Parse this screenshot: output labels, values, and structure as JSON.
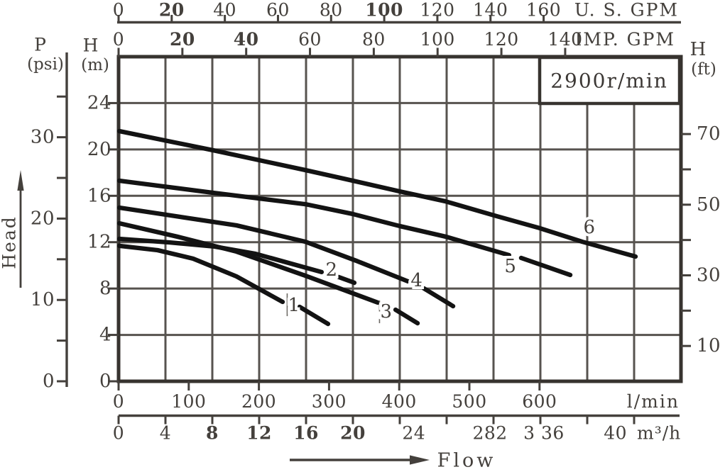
{
  "speed_box": {
    "label": "2900r/min"
  },
  "arrows": {
    "head": "Head",
    "flow": "Flow"
  },
  "left_header": {
    "p_symbol": "P",
    "p_unit": "(psi)",
    "h_symbol": "H",
    "h_unit": "(m)"
  },
  "right_header": {
    "h_symbol": "H",
    "h_unit": "(ft)"
  },
  "colors": {
    "ink": "#44403c",
    "grid": "#57534f",
    "border": "#37332f",
    "curve": "#131313"
  },
  "chart_data": {
    "type": "line",
    "title": "2900r/min",
    "xlabel": "Flow",
    "ylabel": "Head",
    "grid": "on",
    "x_axes": [
      {
        "id": "us_gpm",
        "unit": "U. S. GPM",
        "side": "top-outer",
        "range": [
          0,
          211.7
        ],
        "ticks": [
          0,
          20,
          40,
          60,
          80,
          100,
          120,
          140,
          160
        ],
        "labels": [
          {
            "t": "0",
            "v": 0
          },
          {
            "t": "20",
            "v": 20,
            "b": 1
          },
          {
            "t": "40",
            "v": 40
          },
          {
            "t": "60",
            "v": 60
          },
          {
            "t": "80",
            "v": 80
          },
          {
            "t": "100",
            "v": 100,
            "b": 1
          },
          {
            "t": "120",
            "v": 120
          },
          {
            "t": "140",
            "v": 140
          },
          {
            "t": "160",
            "v": 160
          }
        ]
      },
      {
        "id": "imp_gpm",
        "unit": "IMP. GPM",
        "side": "top-inner",
        "range": [
          0,
          176.3
        ],
        "ticks": [
          0,
          20,
          40,
          60,
          80,
          100,
          120,
          140
        ],
        "labels": [
          {
            "t": "0",
            "v": 0
          },
          {
            "t": "20",
            "v": 20,
            "b": 1
          },
          {
            "t": "40",
            "v": 40,
            "b": 1
          },
          {
            "t": "60",
            "v": 60
          },
          {
            "t": "80",
            "v": 80
          },
          {
            "t": "100",
            "v": 100
          },
          {
            "t": "120",
            "v": 120
          },
          {
            "t": "140",
            "v": 140
          }
        ]
      },
      {
        "id": "l_min",
        "unit": "l/min",
        "side": "bottom-inner",
        "range": [
          0,
          801.6
        ],
        "ticks": [
          0,
          100,
          200,
          300,
          400,
          500,
          600
        ],
        "labels": [
          {
            "t": "0",
            "v": 0
          },
          {
            "t": "100",
            "v": 100
          },
          {
            "t": "200",
            "v": 200
          },
          {
            "t": "300",
            "v": 300
          },
          {
            "t": "400",
            "v": 400
          },
          {
            "t": "500",
            "v": 500
          },
          {
            "t": "600",
            "v": 600
          }
        ]
      },
      {
        "id": "m3_h",
        "unit": "m³/h",
        "side": "bottom-outer",
        "range": [
          0,
          48
        ],
        "ticks": [
          0,
          4,
          8,
          12,
          16,
          20,
          24,
          28,
          32,
          36,
          40,
          44
        ],
        "labels": [
          {
            "t": "0",
            "v": 0
          },
          {
            "t": "4",
            "v": 4
          },
          {
            "t": "8",
            "v": 8,
            "b": 1
          },
          {
            "t": "12",
            "v": 12,
            "b": 1
          },
          {
            "t": "16",
            "v": 16,
            "b": 1
          },
          {
            "t": "20",
            "v": 20,
            "b": 1
          },
          {
            "t": "24",
            "v": 25.2
          },
          {
            "t": "282",
            "v": 31.7
          },
          {
            "t": "3 36",
            "v": 36.3
          },
          {
            "t": "40",
            "v": 42.4
          }
        ]
      }
    ],
    "y_axes": [
      {
        "id": "head_m",
        "symbol": "H",
        "unit": "(m)",
        "side": "left-inner",
        "range": [
          0,
          28
        ],
        "ticks": [
          0,
          4,
          8,
          12,
          16,
          20,
          24
        ],
        "labels": [
          {
            "t": "0",
            "v": 0
          },
          {
            "t": "4",
            "v": 4
          },
          {
            "t": "8",
            "v": 8
          },
          {
            "t": "12",
            "v": 12
          },
          {
            "t": "16",
            "v": 16
          },
          {
            "t": "20",
            "v": 20
          },
          {
            "t": "24",
            "v": 24
          }
        ]
      },
      {
        "id": "head_ft",
        "symbol": "H",
        "unit": "(ft)",
        "side": "right",
        "range": [
          0,
          91.9
        ],
        "ticks": [
          10,
          20,
          30,
          40,
          50,
          60,
          70
        ],
        "labels": [
          {
            "t": "10",
            "v": 10
          },
          {
            "t": "30",
            "v": 30
          },
          {
            "t": "50",
            "v": 50
          },
          {
            "t": "70",
            "v": 70
          }
        ]
      },
      {
        "id": "pressure_psi",
        "symbol": "P",
        "unit": "(psi)",
        "side": "left-outer",
        "range": [
          0,
          39.9
        ],
        "ticks": [
          0,
          5,
          10,
          15,
          20,
          25,
          30,
          35
        ],
        "labels": [
          {
            "t": "0",
            "v": 0
          },
          {
            "t": "10",
            "v": 10
          },
          {
            "t": "20",
            "v": 20
          },
          {
            "t": "30",
            "v": 30
          }
        ]
      }
    ],
    "grid_step": {
      "x_m3h": 4,
      "y_m": 4
    },
    "series": [
      {
        "label": "1",
        "label_at": [
          14.97,
          6.54
        ],
        "points": [
          [
            0.06,
            11.68
          ],
          [
            3.33,
            11.31
          ],
          [
            6.36,
            10.58
          ],
          [
            10.06,
            9.05
          ],
          [
            14.0,
            6.85
          ]
        ],
        "end_dash": [
          [
            15.45,
            6.42
          ],
          [
            17.88,
            4.95
          ]
        ],
        "leader_bar": {
          "q": 14.39,
          "h1": 5.62,
          "h2": 7.58
        }
      },
      {
        "label": "2",
        "label_at": [
          18.18,
          9.6
        ],
        "points": [
          [
            0.06,
            12.29
          ],
          [
            4.3,
            11.98
          ],
          [
            8.18,
            11.62
          ],
          [
            11.7,
            11.0
          ],
          [
            17.33,
            9.42
          ]
        ],
        "end_dash": [
          [
            18.79,
            8.99
          ],
          [
            20.12,
            8.5
          ]
        ]
      },
      {
        "label": "3",
        "label_at": [
          22.85,
          5.99
        ],
        "points": [
          [
            0.06,
            13.63
          ],
          [
            5.03,
            12.47
          ],
          [
            10.06,
            11.19
          ],
          [
            15.94,
            9.11
          ],
          [
            22.12,
            6.79
          ]
        ],
        "end_dash": [
          [
            23.64,
            6.17
          ],
          [
            25.52,
            5.01
          ]
        ],
        "leader_bar": {
          "q": 22.27,
          "h1": 5.01,
          "h2": 6.97
        }
      },
      {
        "label": "4",
        "label_at": [
          25.45,
          8.68
        ],
        "points": [
          [
            0.06,
            14.98
          ],
          [
            5.64,
            14.12
          ],
          [
            10.06,
            13.45
          ],
          [
            15.94,
            12.04
          ],
          [
            20.3,
            10.39
          ],
          [
            24.85,
            8.56
          ]
        ],
        "end_dash": [
          [
            26.06,
            8.01
          ],
          [
            28.55,
            6.48
          ]
        ]
      },
      {
        "label": "5",
        "label_at": [
          33.45,
          9.9
        ],
        "points": [
          [
            0.06,
            17.3
          ],
          [
            8.06,
            16.26
          ],
          [
            15.94,
            15.28
          ],
          [
            20.0,
            14.43
          ],
          [
            24.0,
            13.39
          ],
          [
            27.94,
            12.47
          ],
          [
            33.33,
            10.88
          ]
        ],
        "end_dash": [
          [
            34.36,
            10.64
          ],
          [
            38.55,
            9.17
          ]
        ]
      },
      {
        "label": "6",
        "label_at": [
          40.18,
          13.27
        ],
        "points": [
          [
            0.06,
            21.58
          ],
          [
            8.06,
            19.93
          ],
          [
            15.94,
            18.22
          ],
          [
            20.0,
            17.3
          ],
          [
            24.0,
            16.38
          ],
          [
            27.88,
            15.53
          ],
          [
            32.3,
            14.24
          ],
          [
            35.94,
            13.21
          ],
          [
            39.58,
            12.04
          ],
          [
            44.12,
            10.76
          ]
        ]
      }
    ]
  }
}
